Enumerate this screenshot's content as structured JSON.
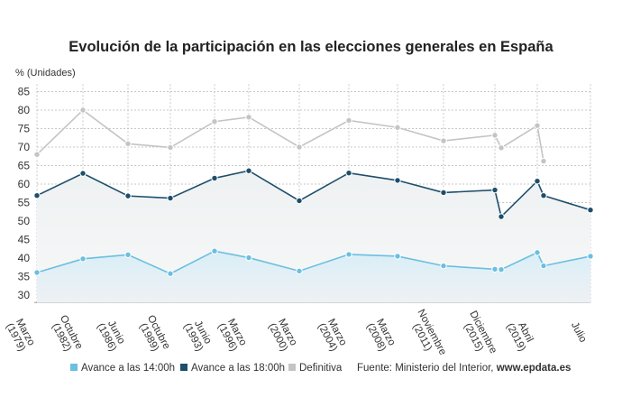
{
  "chart_data": {
    "type": "line",
    "title": "Evolución de la participación en las elecciones generales en España",
    "y_label": "% (Unidades)",
    "categories": [
      "Marzo\n(1979)",
      "Octubre\n(1982)",
      "Junio\n(1986)",
      "Octubre\n(1989)",
      "Junio\n(1993)",
      "Marzo\n(1996)",
      "Marzo\n(2000)",
      "Marzo\n(2004)",
      "Marzo\n(2008)",
      "Noviembre\n(2011)",
      "Diciembre\n(2015)",
      null,
      "Abril\n(2019)",
      null,
      "Julio"
    ],
    "series": [
      {
        "name": "Avance a las 14:00h",
        "color": "#6bbfe0",
        "values": [
          36.1,
          39.8,
          40.9,
          35.8,
          41.9,
          40.1,
          36.5,
          41.0,
          40.5,
          37.9,
          37.0,
          36.9,
          41.5,
          37.9,
          40.5
        ]
      },
      {
        "name": "Avance a las 18:00h",
        "color": "#1d4e6b",
        "values": [
          56.9,
          62.9,
          56.8,
          56.2,
          61.6,
          63.6,
          55.5,
          63.0,
          61.0,
          57.7,
          58.4,
          51.2,
          60.8,
          56.9,
          53.0
        ]
      },
      {
        "name": "Definitiva",
        "color": "#c4c4c4",
        "values": [
          68.0,
          80.0,
          70.9,
          69.9,
          76.9,
          78.1,
          70.0,
          77.2,
          75.3,
          71.7,
          73.2,
          69.8,
          75.8,
          66.2,
          null
        ]
      }
    ],
    "ylim": [
      28,
      87
    ],
    "yticks": [
      30,
      35,
      40,
      45,
      50,
      55,
      60,
      65,
      70,
      75,
      80,
      85
    ],
    "grid": true,
    "source_prefix": "Fuente: Ministerio del Interior,",
    "source_site": "www.epdata.es"
  }
}
